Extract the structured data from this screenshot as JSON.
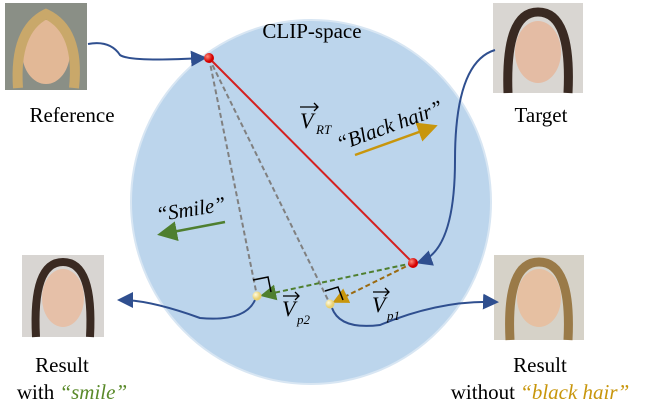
{
  "space_label": "CLIP-space",
  "reference": {
    "label": "Reference"
  },
  "target": {
    "label": "Target"
  },
  "result_left": {
    "title": "Result",
    "prefix": "with",
    "keyword": "“smile”"
  },
  "result_right": {
    "title": "Result",
    "prefix": "without",
    "keyword": "“black hair”"
  },
  "directions": {
    "black_hair": "“Black hair”",
    "smile": "“Smile”"
  },
  "vectors": [
    {
      "symbol": "V",
      "subscript": "RT"
    },
    {
      "symbol": "V",
      "subscript": "p2"
    },
    {
      "symbol": "V",
      "subscript": "p1"
    }
  ]
}
